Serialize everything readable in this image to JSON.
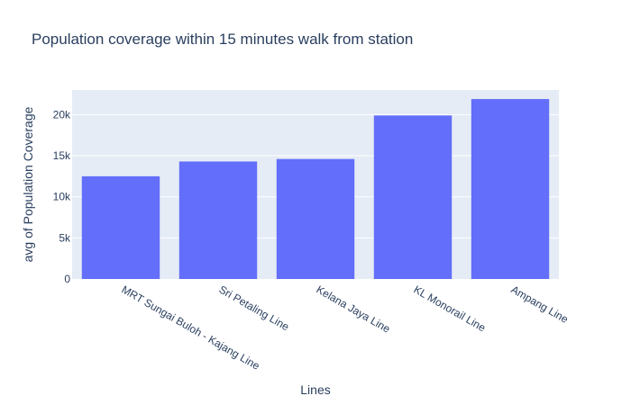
{
  "chart_data": {
    "type": "bar",
    "title": "Population coverage within 15 minutes walk from station",
    "xlabel": "Lines",
    "ylabel": "avg of Population Coverage",
    "categories": [
      "MRT Sungai Buloh - Kajang Line",
      "Sri Petaling Line",
      "Kelana Jaya Line",
      "KL Monorail Line",
      "Ampang Line"
    ],
    "values": [
      12500,
      14300,
      14600,
      19900,
      21900
    ],
    "ylim": [
      0,
      23000
    ],
    "yticks": [
      0,
      5000,
      10000,
      15000,
      20000
    ],
    "ytick_labels": [
      "0",
      "5k",
      "10k",
      "15k",
      "20k"
    ],
    "grid": true,
    "colors": {
      "bar": "#636efa",
      "plot_bg": "#e5ecf6",
      "grid": "#ffffff",
      "text": "#2a3f5f"
    }
  }
}
